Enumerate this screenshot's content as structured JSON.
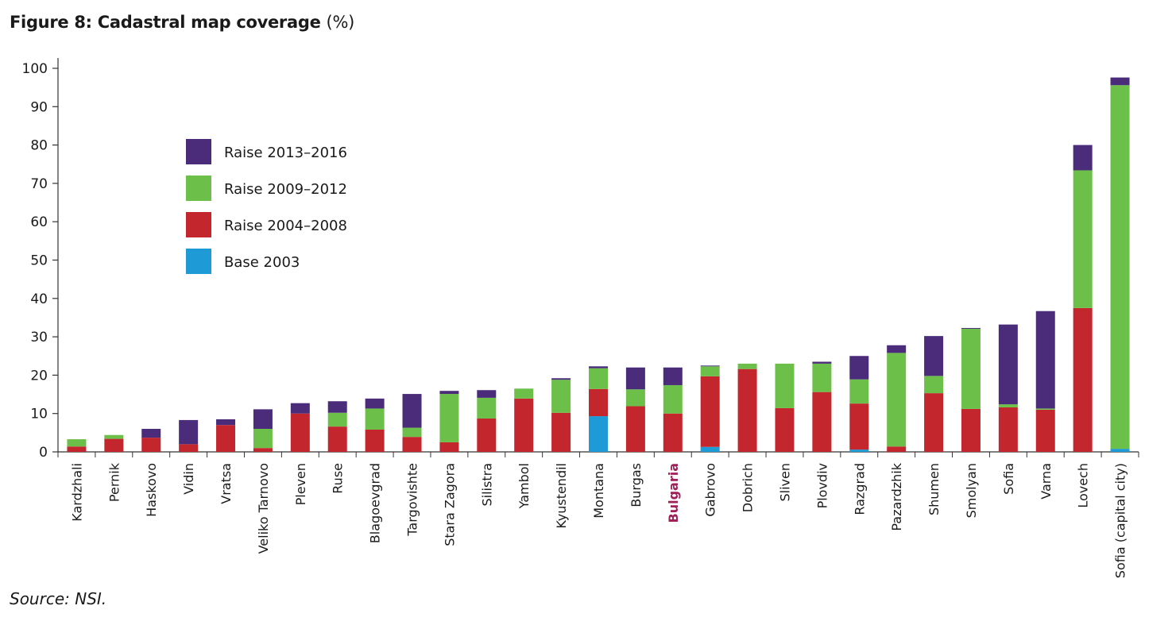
{
  "figure": {
    "title": "Figure 8: Cadastral map coverage",
    "title_unit": "(%)",
    "source": "Source: NSI."
  },
  "chart_data": {
    "type": "bar",
    "stacked": true,
    "categories": [
      "Kardzhali",
      "Pernik",
      "Haskovo",
      "Vidin",
      "Vratsa",
      "Veliko Tarnovo",
      "Pleven",
      "Ruse",
      "Blagoevgrad",
      "Targovishte",
      "Stara Zagora",
      "Silistra",
      "Yambol",
      "Kyustendil",
      "Montana",
      "Burgas",
      "Bulgaria",
      "Gabrovo",
      "Dobrich",
      "Sliven",
      "Plovdiv",
      "Razgrad",
      "Pazardzhik",
      "Shumen",
      "Smolyan",
      "Sofia",
      "Varna",
      "Lovech",
      "Sofia (capital city)"
    ],
    "highlight_category": "Bulgaria",
    "highlight_color": "#a0205a",
    "series": [
      {
        "name": "Base 2003",
        "color": "#1e9ad6",
        "values": [
          0,
          0,
          0,
          0,
          0,
          0,
          0,
          0,
          0,
          0,
          0,
          0,
          0,
          0,
          9.3,
          0,
          0,
          1.3,
          0,
          0,
          0,
          0.6,
          0,
          0,
          0,
          0,
          0,
          0,
          0.8
        ]
      },
      {
        "name": "Raise 2004–2008",
        "color": "#c4262e",
        "values": [
          1.4,
          3.4,
          3.7,
          2.0,
          7.0,
          1.0,
          10.0,
          6.6,
          5.8,
          3.9,
          2.5,
          8.7,
          13.9,
          10.2,
          7.1,
          11.9,
          10.0,
          18.4,
          21.6,
          11.4,
          15.6,
          12.0,
          1.4,
          15.3,
          11.2,
          11.6,
          11.0,
          37.5,
          0
        ]
      },
      {
        "name": "Raise 2009–2012",
        "color": "#6cc04a",
        "values": [
          1.9,
          1.0,
          0,
          0,
          0,
          5.0,
          0,
          3.6,
          5.5,
          2.4,
          12.6,
          5.4,
          2.6,
          8.6,
          5.4,
          4.4,
          7.4,
          2.6,
          1.4,
          11.6,
          7.4,
          6.3,
          24.4,
          4.5,
          20.9,
          0.8,
          0.3,
          35.9,
          94.8
        ]
      },
      {
        "name": "Raise 2013–2016",
        "color": "#4a2c7a",
        "values": [
          0,
          0,
          2.3,
          6.3,
          1.5,
          5.1,
          2.7,
          3.0,
          2.6,
          8.8,
          0.8,
          2.0,
          0,
          0.4,
          0.5,
          5.7,
          4.6,
          0.2,
          0,
          0,
          0.5,
          6.1,
          2.0,
          10.4,
          0.2,
          20.8,
          25.4,
          6.6,
          2.0
        ]
      }
    ],
    "legend_order": [
      "Raise 2013–2016",
      "Raise 2009–2012",
      "Raise 2004–2008",
      "Base 2003"
    ],
    "legend_position": "upper-left",
    "ylim": [
      0,
      100
    ],
    "yticks": [
      0,
      10,
      20,
      30,
      40,
      50,
      60,
      70,
      80,
      90,
      100
    ],
    "xlabel": "",
    "ylabel": "",
    "grid": false
  }
}
